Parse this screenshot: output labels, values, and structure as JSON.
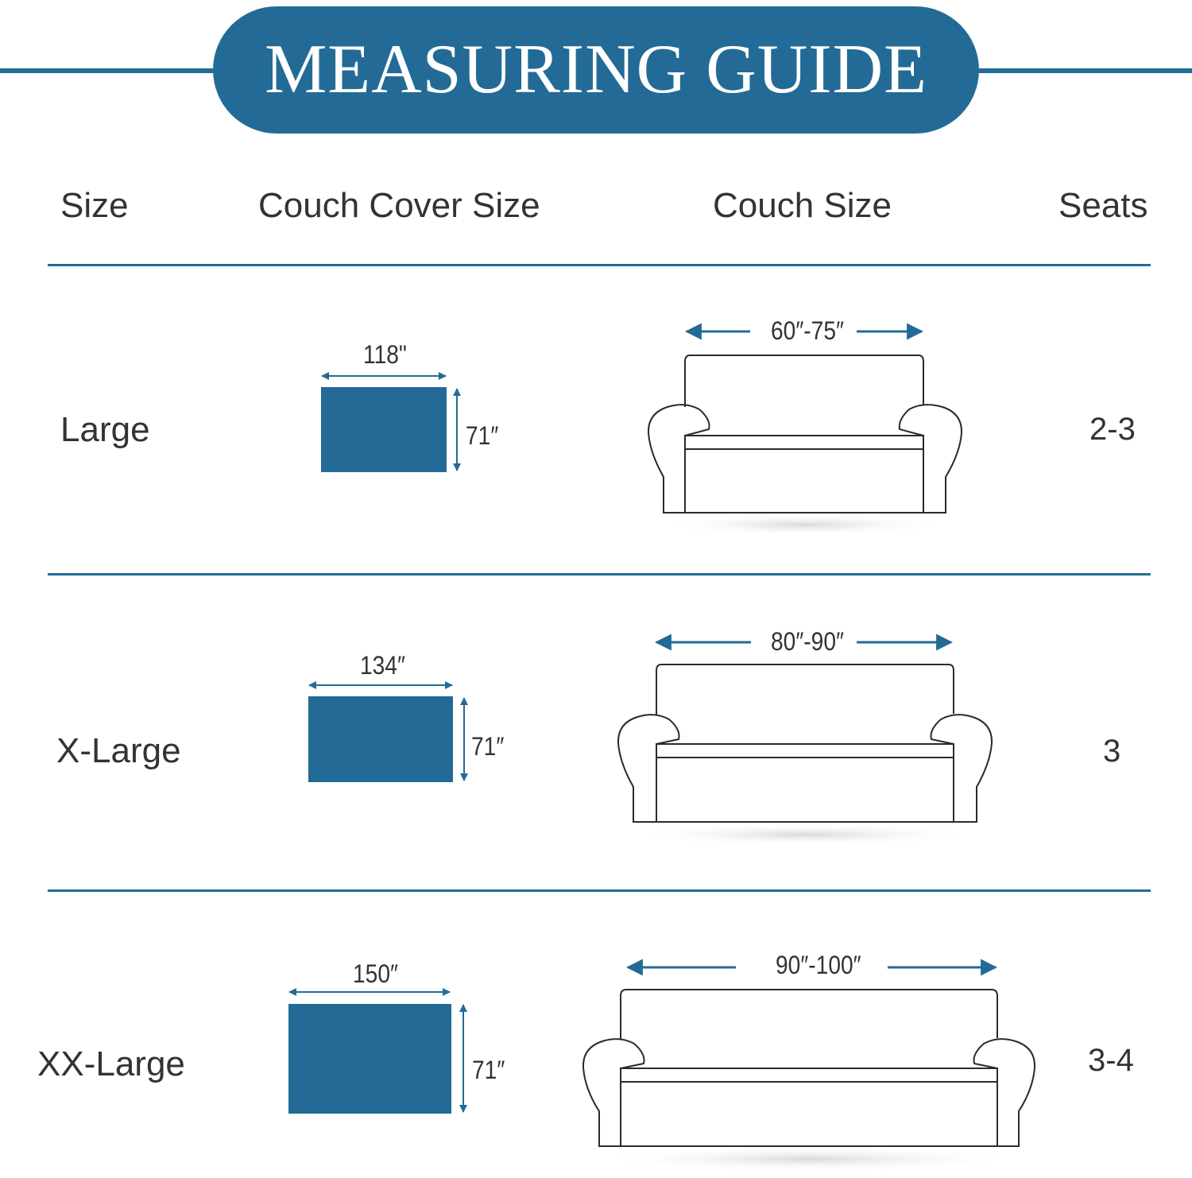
{
  "title": "MEASURING GUIDE",
  "header": {
    "size": "Size",
    "cover_size": "Couch Cover Size",
    "couch_size": "Couch Size",
    "seats": "Seats"
  },
  "rows": [
    {
      "size": "Large",
      "cover_width": "118\"",
      "cover_height": "71″",
      "couch_size": "60″-75″",
      "seats": "2-3"
    },
    {
      "size": "X-Large",
      "cover_width": "134″",
      "cover_height": "71″",
      "couch_size": "80″-90″",
      "seats": "3"
    },
    {
      "size": "XX-Large",
      "cover_width": "150″",
      "cover_height": "71″",
      "couch_size": "90″-100″",
      "seats": "3-4"
    }
  ],
  "colors": {
    "accent": "#236b96",
    "text": "#333333",
    "background": "#ffffff"
  }
}
